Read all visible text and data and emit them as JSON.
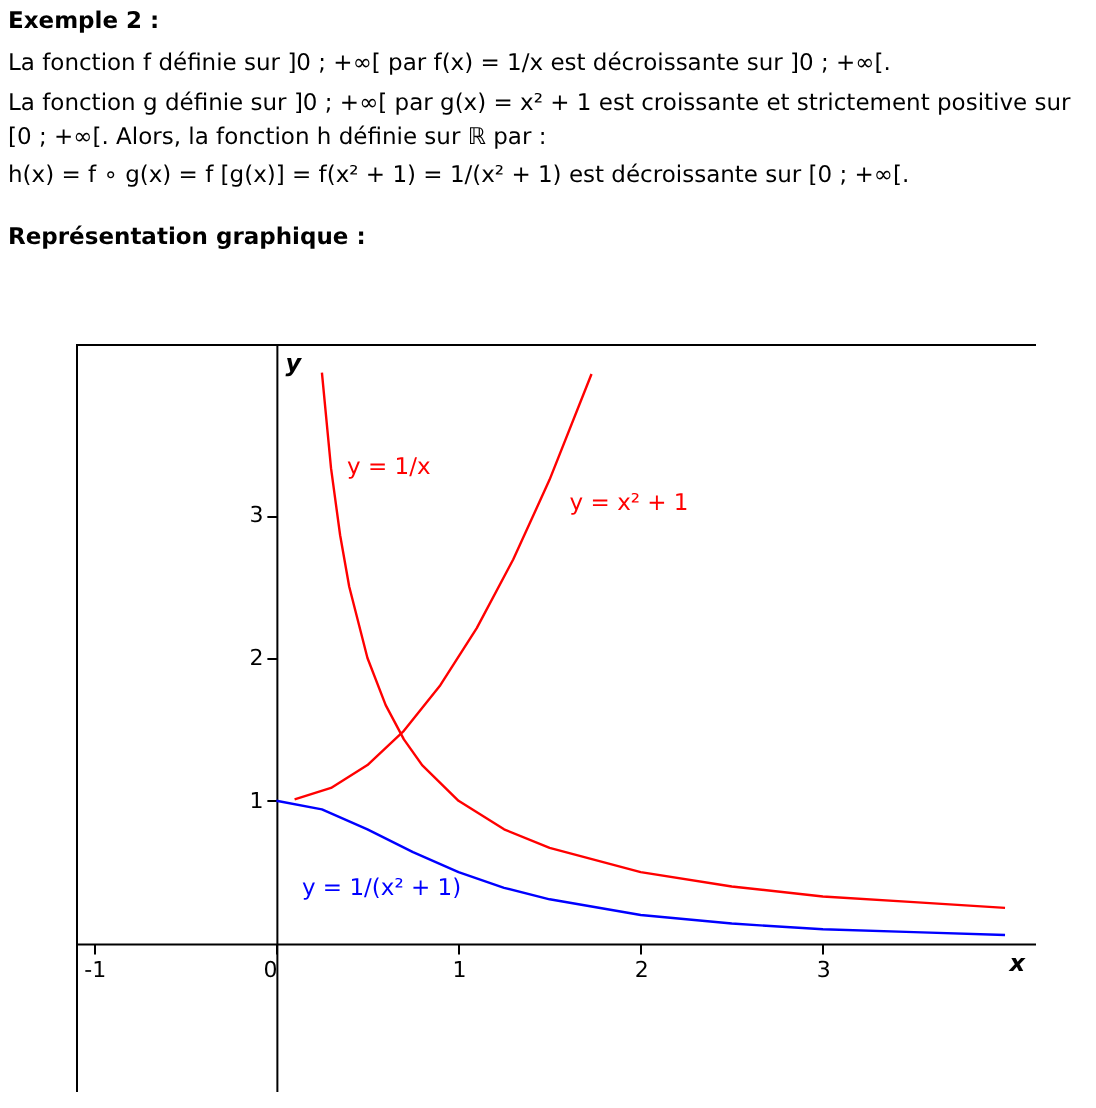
{
  "chart_data": {
    "type": "line",
    "title": "Exemple 2 :",
    "subtitle": "Représentation graphique :",
    "annotations": [
      "La fonction f définie sur ]0 ; +∞[ par f(x) = 1/x est décroissante sur ]0 ; +∞[.",
      "La fonction g définie sur ]0 ; +∞[ par g(x) = x² + 1 est croissante et strictement positive sur [0 ; +∞[. Alors, la fonction h définie sur ℝ par :",
      "h(x) = f ∘ g(x) = f [g(x)] = f(x² + 1) = 1/(x² + 1) est décroissante sur [0 ; +∞[."
    ],
    "xlabel": "x",
    "ylabel": "y",
    "xlim": [
      -1.1,
      4.17
    ],
    "ylim": [
      -1.04,
      4.2
    ],
    "xticks": [
      -1,
      0,
      1,
      2,
      3
    ],
    "yticks": [
      1,
      2,
      3
    ],
    "series": [
      {
        "name": "y = 1/x",
        "color": "#ff0000",
        "x": [
          0.25,
          0.3,
          0.35,
          0.4,
          0.5,
          0.6,
          0.7,
          0.8,
          1,
          1.25,
          1.5,
          2,
          2.5,
          3,
          3.5,
          4
        ],
        "values": [
          4,
          3.33,
          2.86,
          2.5,
          2,
          1.67,
          1.43,
          1.25,
          1,
          0.8,
          0.67,
          0.5,
          0.4,
          0.33,
          0.29,
          0.25
        ]
      },
      {
        "name": "y = x² + 1",
        "color": "#ff0000",
        "x": [
          0.1,
          0.3,
          0.5,
          0.7,
          0.9,
          1.1,
          1.3,
          1.5,
          1.73
        ],
        "values": [
          1.01,
          1.09,
          1.25,
          1.49,
          1.81,
          2.21,
          2.69,
          3.25,
          3.99
        ]
      },
      {
        "name": "y = 1/(x² + 1)",
        "color": "#0000ff",
        "x": [
          0,
          0.25,
          0.5,
          0.75,
          1,
          1.25,
          1.5,
          2,
          2.5,
          3,
          3.5,
          4
        ],
        "values": [
          1,
          0.94,
          0.8,
          0.64,
          0.5,
          0.39,
          0.31,
          0.2,
          0.14,
          0.1,
          0.08,
          0.06
        ]
      }
    ]
  }
}
